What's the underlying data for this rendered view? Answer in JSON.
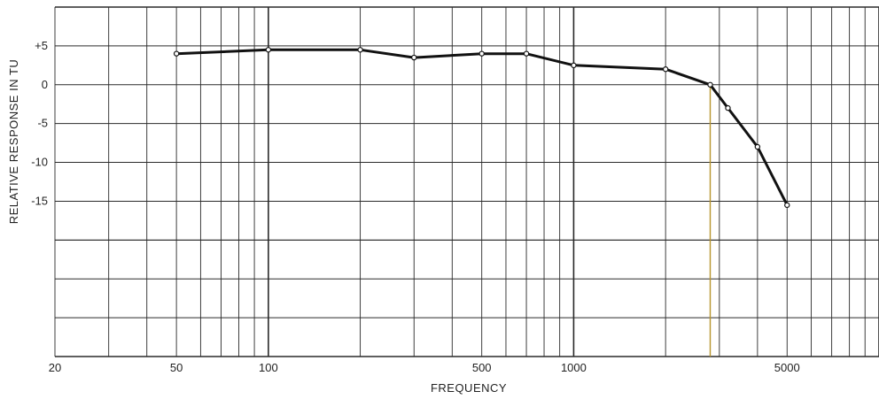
{
  "chart_data": {
    "type": "line",
    "title": "",
    "xlabel": "FREQUENCY",
    "ylabel": "RELATIVE RESPONSE IN TU",
    "x_scale": "log",
    "xlim": [
      20,
      10000
    ],
    "ylim": [
      -35,
      10
    ],
    "grid": true,
    "x_tick_labels": [
      {
        "value": 20,
        "label": "20"
      },
      {
        "value": 50,
        "label": "50"
      },
      {
        "value": 100,
        "label": "100"
      },
      {
        "value": 500,
        "label": "500"
      },
      {
        "value": 1000,
        "label": "1000"
      },
      {
        "value": 5000,
        "label": "5000"
      }
    ],
    "y_tick_labels": [
      {
        "value": 5,
        "label": "+5"
      },
      {
        "value": 0,
        "label": "0"
      },
      {
        "value": -5,
        "label": "-5"
      },
      {
        "value": -10,
        "label": "-10"
      },
      {
        "value": -15,
        "label": "-15"
      }
    ],
    "series": [
      {
        "points": [
          {
            "x": 50,
            "y": 4
          },
          {
            "x": 100,
            "y": 4.5
          },
          {
            "x": 200,
            "y": 4.5
          },
          {
            "x": 300,
            "y": 3.5
          },
          {
            "x": 500,
            "y": 4
          },
          {
            "x": 700,
            "y": 4
          },
          {
            "x": 1000,
            "y": 2.5
          },
          {
            "x": 2000,
            "y": 2
          },
          {
            "x": 2800,
            "y": 0
          },
          {
            "x": 3200,
            "y": -3
          },
          {
            "x": 4000,
            "y": -8
          },
          {
            "x": 5000,
            "y": -15.5
          }
        ]
      }
    ],
    "colors": {
      "grid": "#2a2a2a",
      "line": "#111111",
      "marker_fill": "#ffffff",
      "highlight_line": "#b7942c"
    }
  }
}
